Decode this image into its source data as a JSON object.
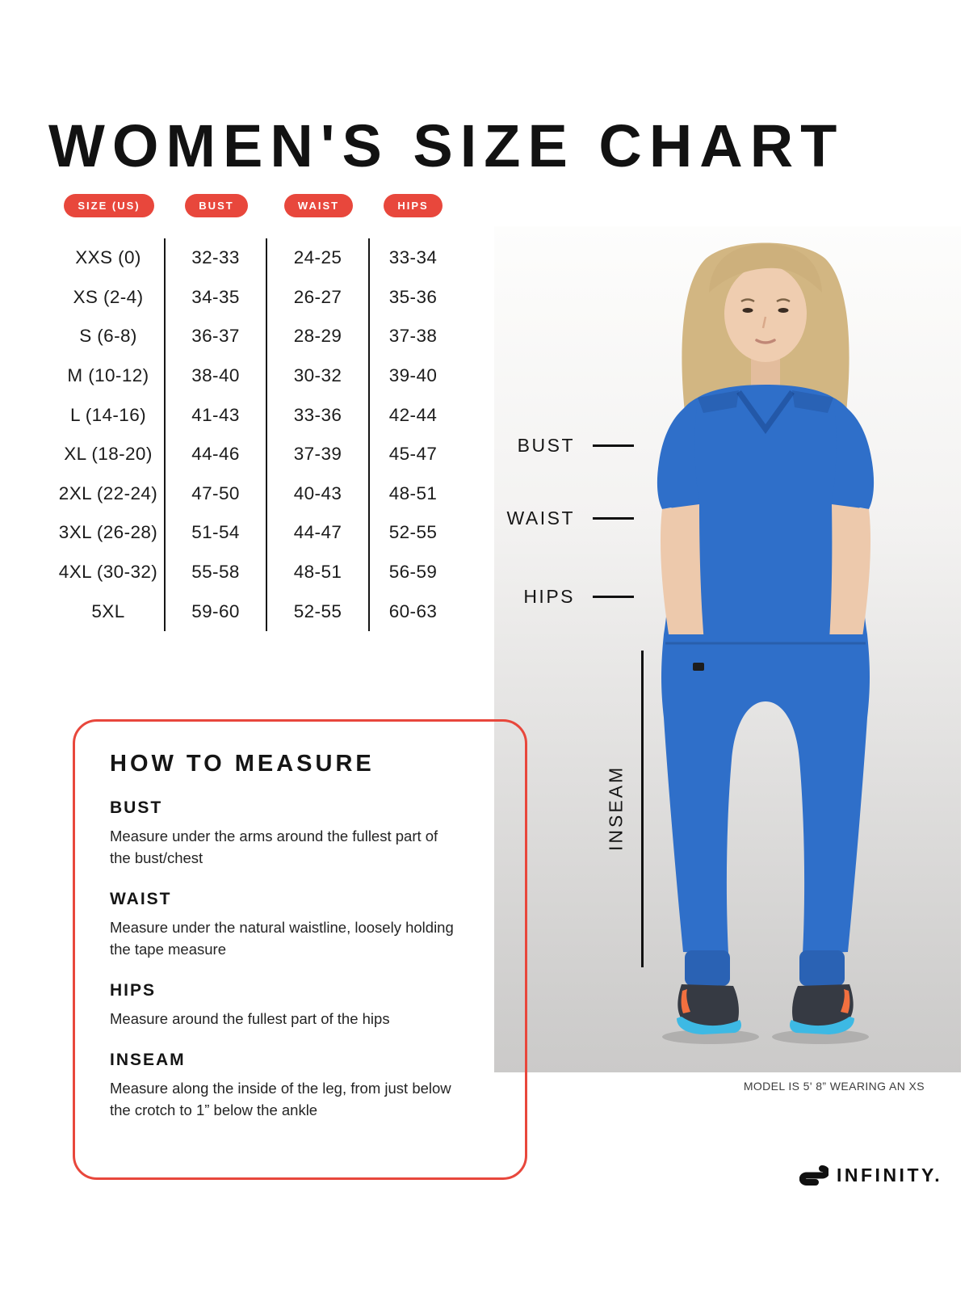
{
  "page": {
    "title": "WOMEN'S SIZE CHART"
  },
  "colors": {
    "accent_red": "#E8473C",
    "scrub_blue": "#2F6FC9",
    "text_dark": "#1A1A1A"
  },
  "size_table": {
    "headers": [
      "SIZE (US)",
      "BUST",
      "WAIST",
      "HIPS"
    ],
    "rows": [
      [
        "XXS (0)",
        "32-33",
        "24-25",
        "33-34"
      ],
      [
        "XS (2-4)",
        "34-35",
        "26-27",
        "35-36"
      ],
      [
        "S (6-8)",
        "36-37",
        "28-29",
        "37-38"
      ],
      [
        "M (10-12)",
        "38-40",
        "30-32",
        "39-40"
      ],
      [
        "L (14-16)",
        "41-43",
        "33-36",
        "42-44"
      ],
      [
        "XL (18-20)",
        "44-46",
        "37-39",
        "45-47"
      ],
      [
        "2XL (22-24)",
        "47-50",
        "40-43",
        "48-51"
      ],
      [
        "3XL (26-28)",
        "51-54",
        "44-47",
        "52-55"
      ],
      [
        "4XL (30-32)",
        "55-58",
        "48-51",
        "56-59"
      ],
      [
        "5XL",
        "59-60",
        "52-55",
        "60-63"
      ]
    ]
  },
  "figure": {
    "labels": {
      "bust": "BUST",
      "waist": "WAIST",
      "hips": "HIPS",
      "inseam": "INSEAM"
    },
    "caption": "MODEL IS 5' 8” WEARING AN XS"
  },
  "how_to_measure": {
    "title": "HOW TO MEASURE",
    "sections": [
      {
        "heading": "BUST",
        "body": "Measure under the arms around the fullest part of the bust/chest"
      },
      {
        "heading": "WAIST",
        "body": "Measure under the natural waistline, loosely holding the tape measure"
      },
      {
        "heading": "HIPS",
        "body": "Measure around the fullest part of the hips"
      },
      {
        "heading": "INSEAM",
        "body": "Measure along the inside of the leg, from just below the crotch to 1” below the ankle"
      }
    ]
  },
  "brand": {
    "icon": "infinity-loop-icon",
    "logo_text": "INFINITY."
  }
}
